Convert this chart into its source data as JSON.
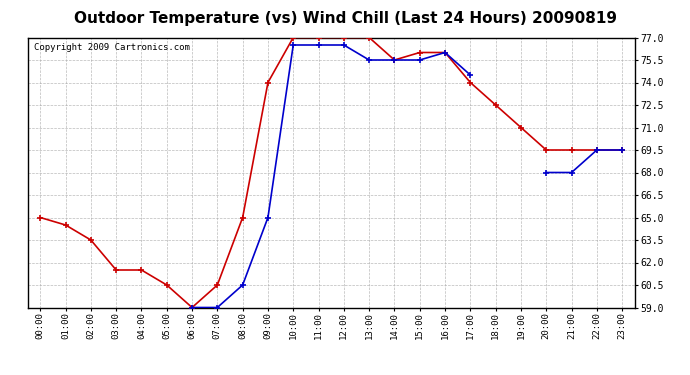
{
  "title": "Outdoor Temperature (vs) Wind Chill (Last 24 Hours) 20090819",
  "copyright": "Copyright 2009 Cartronics.com",
  "hours": [
    "00:00",
    "01:00",
    "02:00",
    "03:00",
    "04:00",
    "05:00",
    "06:00",
    "07:00",
    "08:00",
    "09:00",
    "10:00",
    "11:00",
    "12:00",
    "13:00",
    "14:00",
    "15:00",
    "16:00",
    "17:00",
    "18:00",
    "19:00",
    "20:00",
    "21:00",
    "22:00",
    "23:00"
  ],
  "outdoor_temp": [
    65.0,
    64.5,
    63.5,
    61.5,
    61.5,
    60.5,
    59.0,
    60.5,
    65.0,
    74.0,
    77.0,
    77.0,
    77.0,
    77.0,
    75.5,
    76.0,
    76.0,
    74.0,
    72.5,
    71.0,
    69.5,
    69.5,
    69.5,
    69.5
  ],
  "wind_chill": [
    null,
    null,
    null,
    null,
    null,
    null,
    59.0,
    59.0,
    60.5,
    65.0,
    76.5,
    76.5,
    76.5,
    75.5,
    75.5,
    75.5,
    76.0,
    74.5,
    null,
    null,
    68.0,
    68.0,
    69.5,
    69.5
  ],
  "temp_color": "#cc0000",
  "chill_color": "#0000cc",
  "marker": "+",
  "markersize": 5,
  "linewidth": 1.2,
  "ylim": [
    59.0,
    77.0
  ],
  "yticks": [
    59.0,
    60.5,
    62.0,
    63.5,
    65.0,
    66.5,
    68.0,
    69.5,
    71.0,
    72.5,
    74.0,
    75.5,
    77.0
  ],
  "background_color": "#ffffff",
  "grid_color": "#aaaaaa",
  "title_fontsize": 11,
  "copyright_fontsize": 6.5,
  "fig_width": 6.9,
  "fig_height": 3.75,
  "dpi": 100
}
